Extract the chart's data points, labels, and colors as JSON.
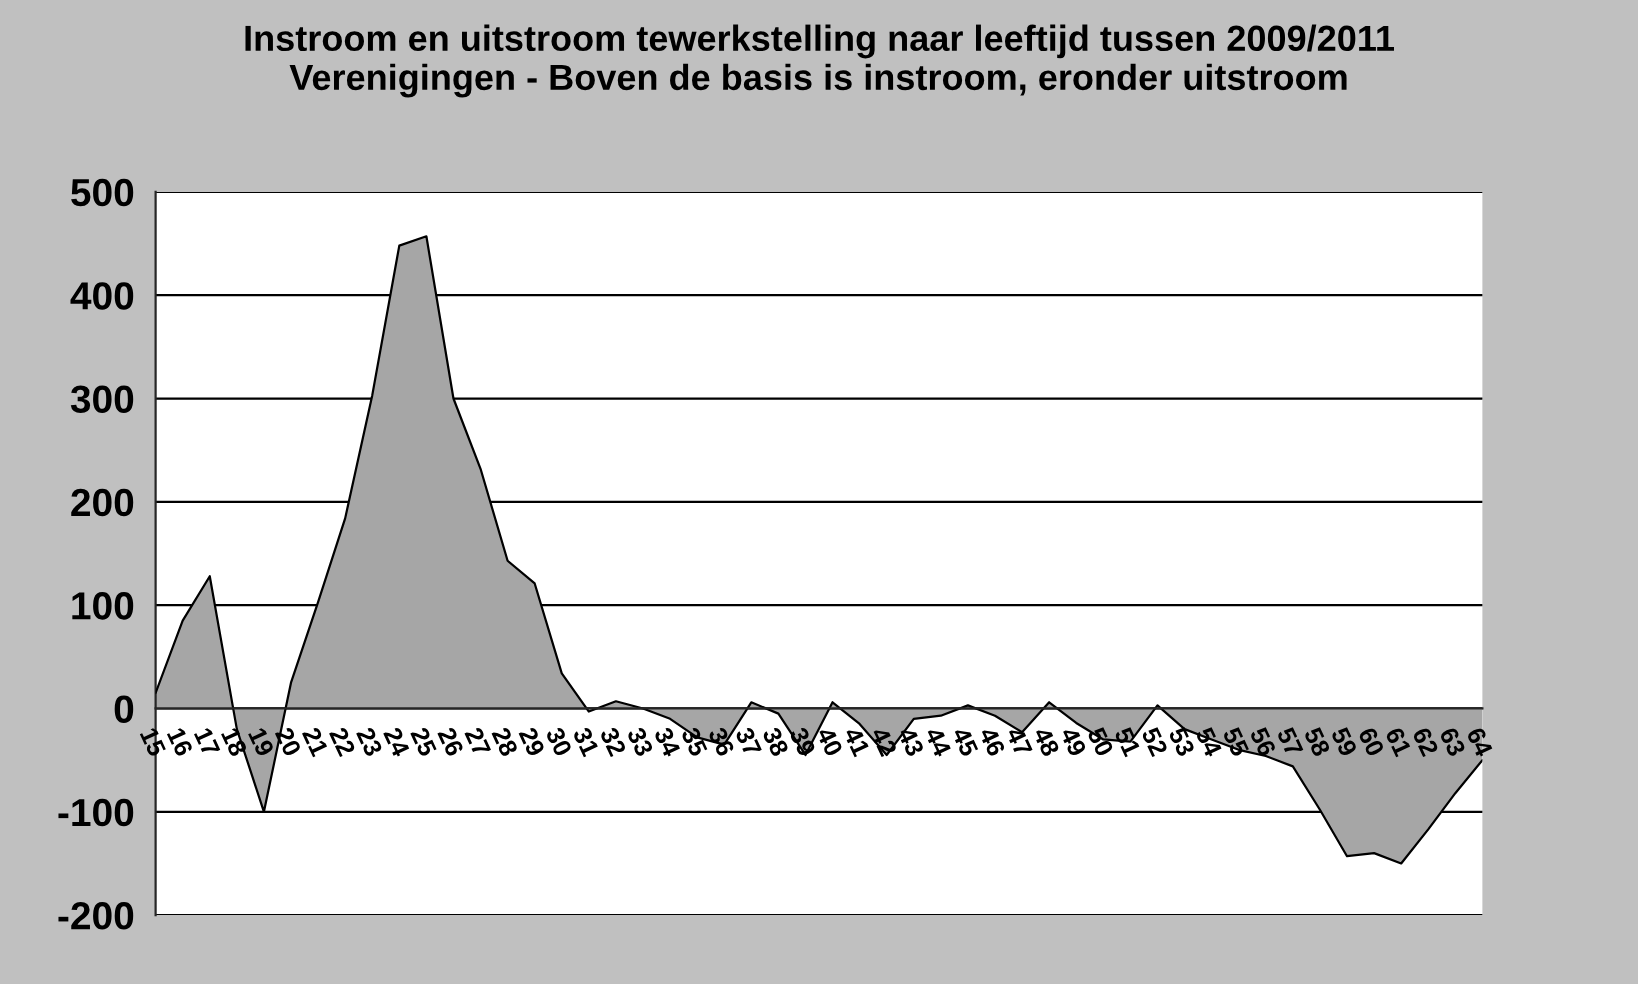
{
  "chart_data": {
    "type": "area",
    "title": "Instroom en uitstroom tewerkstelling naar leeftijd tussen 2009/2011\nVerenigingen - Boven de basis is instroom, eronder uitstroom",
    "categories": [
      "15",
      "16",
      "17",
      "18",
      "19",
      "20",
      "21",
      "22",
      "23",
      "24",
      "25",
      "26",
      "27",
      "28",
      "29",
      "30",
      "31",
      "32",
      "33",
      "34",
      "35",
      "36",
      "37",
      "38",
      "39",
      "40",
      "41",
      "42",
      "43",
      "44",
      "45",
      "46",
      "47",
      "48",
      "49",
      "50",
      "51",
      "52",
      "53",
      "54",
      "55",
      "56",
      "57",
      "58",
      "59",
      "60",
      "61",
      "62",
      "63",
      "64"
    ],
    "series": [
      {
        "color": "#a6a6a6",
        "values": [
          15,
          85,
          128,
          -20,
          -100,
          25,
          103,
          184,
          303,
          448,
          457,
          300,
          232,
          143,
          121,
          34,
          -3,
          7,
          0,
          -10,
          -28,
          -35,
          6,
          -5,
          -45,
          6,
          -15,
          -45,
          -10,
          -7,
          3,
          -7,
          -23,
          6,
          -14,
          -30,
          -32,
          3,
          -20,
          -30,
          -40,
          -46,
          -56,
          -98,
          -143,
          -140,
          -150,
          -117,
          -82,
          -50
        ]
      }
    ],
    "ylim": [
      -200,
      500
    ],
    "yticks": [
      -200,
      -100,
      0,
      100,
      200,
      300,
      400,
      500
    ],
    "grid": "y",
    "legend": false
  }
}
